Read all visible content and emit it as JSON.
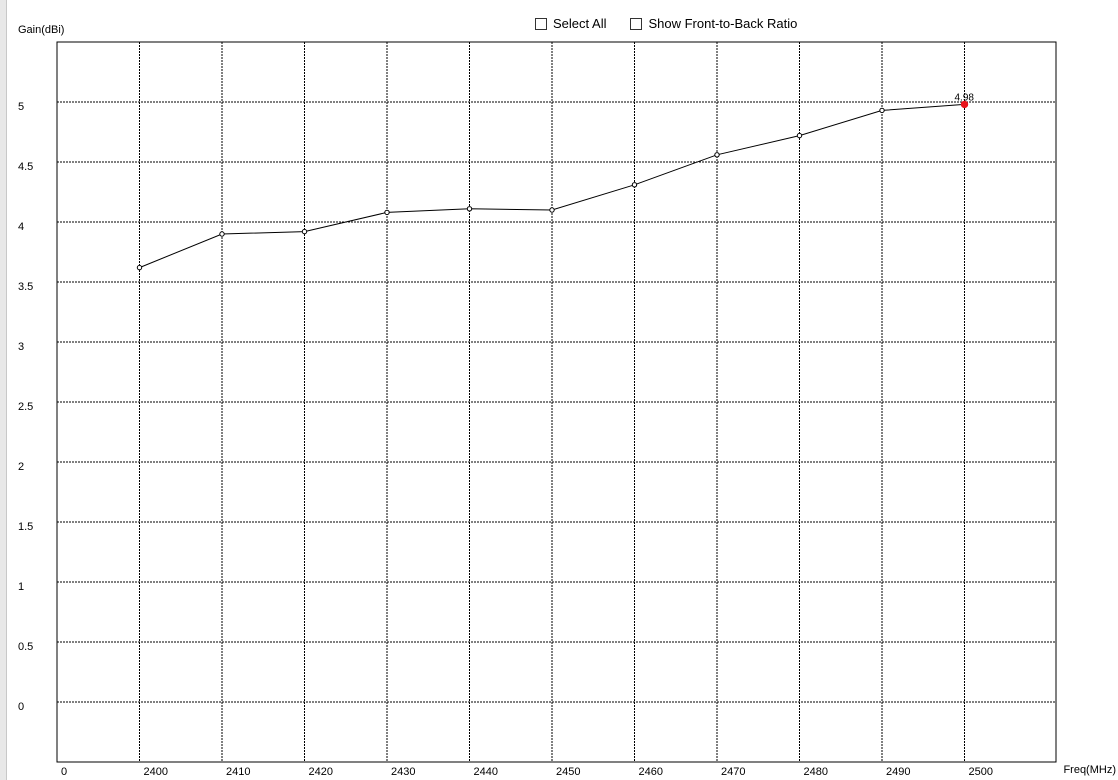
{
  "toolbar": {
    "select_all_label": "Select All",
    "front_to_back_label": "Show Front-to-Back Ratio"
  },
  "chart_data": {
    "type": "line",
    "xlabel": "Freq(MHz)",
    "ylabel": "Gain(dBi)",
    "x": [
      2400,
      2410,
      2420,
      2430,
      2440,
      2450,
      2460,
      2470,
      2480,
      2490,
      2500
    ],
    "series": [
      {
        "values": [
          3.62,
          3.9,
          3.92,
          4.08,
          4.11,
          4.1,
          4.31,
          4.56,
          4.72,
          4.93,
          4.98
        ]
      }
    ],
    "x_tick_labels": [
      "0",
      "2400",
      "2410",
      "2420",
      "2430",
      "2440",
      "2450",
      "2460",
      "2470",
      "2480",
      "2490",
      "2500"
    ],
    "y_ticks": [
      0,
      0.5,
      1,
      1.5,
      2,
      2.5,
      3,
      3.5,
      4,
      4.5,
      5
    ],
    "y_tick_labels": [
      "0",
      "0.5",
      "1",
      "1.5",
      "2",
      "2.5",
      "3",
      "3.5",
      "4",
      "4.5",
      "5"
    ],
    "ylim": [
      -0.5,
      5.5
    ],
    "grid": true,
    "highlighted_point": {
      "x": 2500,
      "y": 4.98,
      "label": "4.98",
      "color": "#e8141c"
    },
    "line_color": "#000000",
    "grid_color": "#000000"
  }
}
